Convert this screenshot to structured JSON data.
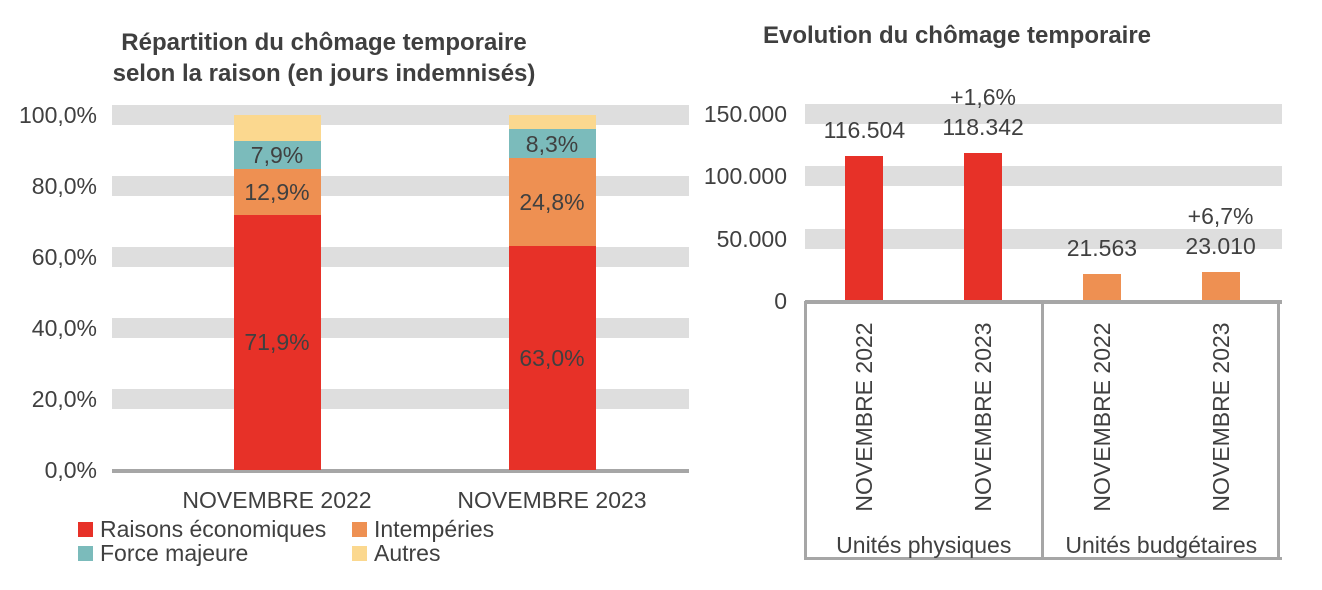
{
  "colors": {
    "band": "#DEDEDE",
    "axis": "#A6A6A6",
    "text": "#404040",
    "red": "#E73128",
    "orange": "#EE9052",
    "teal": "#7BBBBB",
    "yellow": "#FBD88F"
  },
  "chart_data": [
    {
      "type": "bar",
      "subtype": "stacked-100-percent",
      "title": "Répartition du chômage temporaire selon la raison (en jours indemnisés)",
      "title_lines": [
        "Répartition du chômage temporaire",
        "selon la raison (en jours indemnisés)"
      ],
      "categories": [
        "NOVEMBRE 2022",
        "NOVEMBRE 2023"
      ],
      "series": [
        {
          "name": "Raisons économiques",
          "color": "#E73128",
          "values": [
            71.9,
            63.0
          ],
          "labels": [
            "71,9%",
            "63,0%"
          ]
        },
        {
          "name": "Intempéries",
          "color": "#EE9052",
          "values": [
            12.9,
            24.8
          ],
          "labels": [
            "12,9%",
            "24,8%"
          ]
        },
        {
          "name": "Force majeure",
          "color": "#7BBBBB",
          "values": [
            7.9,
            8.3
          ],
          "labels": [
            "7,9%",
            "8,3%"
          ]
        },
        {
          "name": "Autres",
          "color": "#FBD88F",
          "values": [
            7.3,
            3.9
          ],
          "labels": [
            null,
            null
          ]
        }
      ],
      "y_axis": {
        "min": 0,
        "max": 100,
        "ticks": [
          "0,0%",
          "20,0%",
          "40,0%",
          "60,0%",
          "80,0%",
          "100,0%"
        ]
      },
      "legend_position": "bottom",
      "gridlines": "band"
    },
    {
      "type": "bar",
      "title": "Evolution du chômage temporaire",
      "groups": [
        {
          "label": "Unités physiques",
          "color": "#E73128",
          "categories": [
            "NOVEMBRE 2022",
            "NOVEMBRE 2023"
          ],
          "values": [
            116504,
            118342
          ],
          "value_labels": [
            "116.504",
            "118.342"
          ],
          "pct_labels": [
            null,
            "+1,6%"
          ]
        },
        {
          "label": "Unités budgétaires",
          "color": "#EE9052",
          "categories": [
            "NOVEMBRE 2022",
            "NOVEMBRE 2023"
          ],
          "values": [
            21563,
            23010
          ],
          "value_labels": [
            "21.563",
            "23.010"
          ],
          "pct_labels": [
            null,
            "+6,7%"
          ]
        }
      ],
      "y_axis": {
        "min": 0,
        "max": 150000,
        "ticks": [
          "0",
          "50.000",
          "100.000",
          "150.000"
        ]
      },
      "gridlines": "band"
    }
  ]
}
